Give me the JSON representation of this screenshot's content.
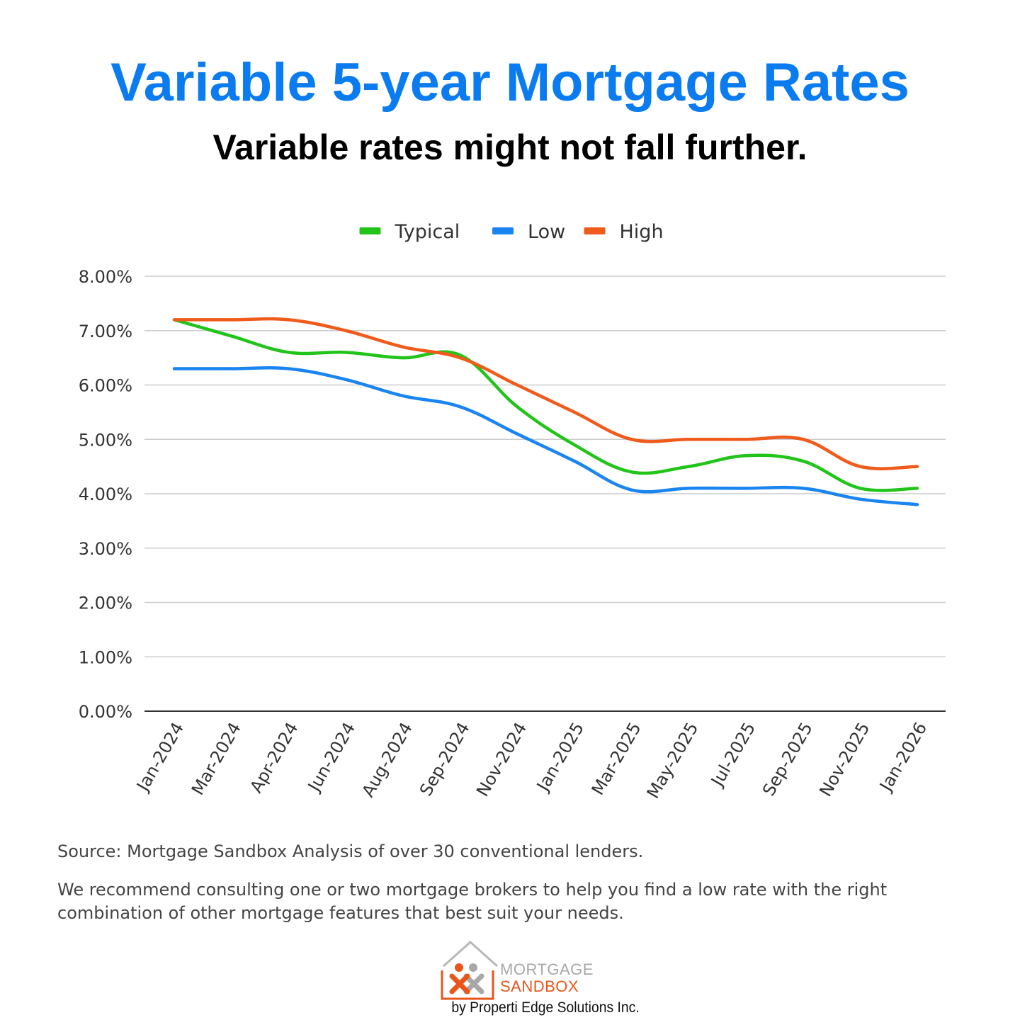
{
  "header": {
    "title": "Variable 5-year Mortgage Rates",
    "subtitle": "Variable rates might not fall further."
  },
  "chart_data": {
    "type": "line",
    "title": "",
    "xlabel": "",
    "ylabel": "",
    "categories": [
      "Jan-2024",
      "Mar-2024",
      "Apr-2024",
      "Jun-2024",
      "Aug-2024",
      "Sep-2024",
      "Nov-2024",
      "Jan-2025",
      "Mar-2025",
      "May-2025",
      "Jul-2025",
      "Sep-2025",
      "Nov-2025",
      "Jan-2026"
    ],
    "series": [
      {
        "name": "Typical",
        "color": "#22c41a",
        "values": [
          7.2,
          6.9,
          6.6,
          6.6,
          6.5,
          6.55,
          5.6,
          4.9,
          4.4,
          4.5,
          4.7,
          4.6,
          4.1,
          4.1
        ]
      },
      {
        "name": "Low",
        "color": "#1a84f0",
        "values": [
          6.3,
          6.3,
          6.3,
          6.1,
          5.8,
          5.6,
          5.1,
          4.6,
          4.07,
          4.1,
          4.1,
          4.1,
          3.9,
          3.8
        ]
      },
      {
        "name": "High",
        "color": "#f05a1a",
        "values": [
          7.2,
          7.2,
          7.2,
          7.0,
          6.7,
          6.5,
          6.0,
          5.5,
          5.0,
          5.0,
          5.0,
          5.0,
          4.5,
          4.5
        ]
      }
    ],
    "ylim": [
      0,
      8
    ],
    "yticks": [
      "0.00%",
      "1.00%",
      "2.00%",
      "3.00%",
      "4.00%",
      "5.00%",
      "6.00%",
      "7.00%",
      "8.00%"
    ],
    "grid": true,
    "legend_position": "top-center"
  },
  "footer": {
    "source": "Source: Mortgage Sandbox Analysis of over 30 conventional lenders.",
    "recommendation": "We recommend consulting one or two mortgage brokers to help you find a low rate with the right combination of other mortgage features that best suit your needs.",
    "logo_line1": "MORTGAGE",
    "logo_line2": "SANDBOX",
    "byline": "by Properti Edge Solutions Inc."
  }
}
